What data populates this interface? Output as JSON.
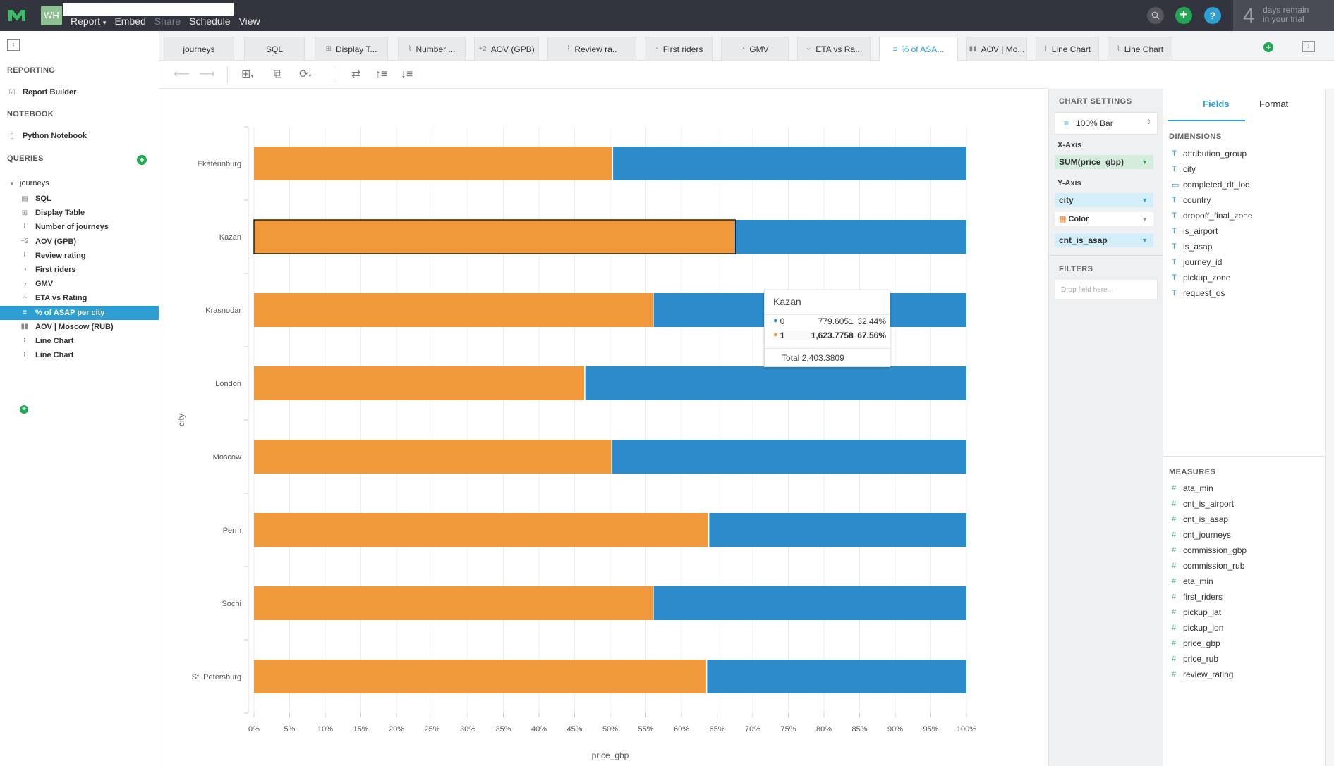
{
  "topbar": {
    "workspace_initials": "WH",
    "menu": [
      {
        "label": "Report",
        "has_arrow": true,
        "enabled": true
      },
      {
        "label": "Embed",
        "enabled": true
      },
      {
        "label": "Share",
        "enabled": false
      },
      {
        "label": "Schedule",
        "enabled": true
      },
      {
        "label": "View",
        "enabled": true
      }
    ],
    "help_label": "?",
    "trial_number": "4",
    "trial_line1": "days remain",
    "trial_line2": "in your trial",
    "colors": {
      "bg": "#33353e",
      "green": "#22a653",
      "blue": "#2d9fd3"
    }
  },
  "sidebar": {
    "reporting_title": "REPORTING",
    "report_builder": "Report Builder",
    "notebook_title": "NOTEBOOK",
    "python_notebook": "Python Notebook",
    "queries_title": "QUERIES",
    "query_group": "journeys",
    "items": [
      {
        "label": "SQL",
        "icon": "sql-icon"
      },
      {
        "label": "Display Table",
        "icon": "table-icon"
      },
      {
        "label": "Number of journeys",
        "icon": "line-chart-icon"
      },
      {
        "label": "AOV (GPB)",
        "icon": "number-icon"
      },
      {
        "label": "Review rating",
        "icon": "line-chart-icon"
      },
      {
        "label": "First riders",
        "icon": "pie-icon"
      },
      {
        "label": "GMV",
        "icon": "pie-icon"
      },
      {
        "label": "ETA vs Rating",
        "icon": "scatter-icon"
      },
      {
        "label": "% of ASAP per city",
        "icon": "bar-icon",
        "active": true
      },
      {
        "label": "AOV | Moscow (RUB)",
        "icon": "column-icon"
      },
      {
        "label": "Line Chart",
        "icon": "line-chart-icon"
      },
      {
        "label": "Line Chart",
        "icon": "line-chart-icon"
      }
    ]
  },
  "tabs": [
    {
      "label": "journeys",
      "icon": ""
    },
    {
      "label": "SQL",
      "icon": ""
    },
    {
      "label": "Display T...",
      "icon": "table-icon"
    },
    {
      "label": "Number ...",
      "icon": "line-chart-icon"
    },
    {
      "label": "AOV (GPB)",
      "icon": "number-icon"
    },
    {
      "label": "Review ra..",
      "icon": "line-chart-icon"
    },
    {
      "label": "First riders",
      "icon": "pie-icon"
    },
    {
      "label": "GMV",
      "icon": "pie-icon"
    },
    {
      "label": "ETA vs Ra...",
      "icon": "scatter-icon"
    },
    {
      "label": "% of ASA...",
      "icon": "bar-icon",
      "active": true
    },
    {
      "label": "AOV | Mo...",
      "icon": "column-icon"
    },
    {
      "label": "Line Chart",
      "icon": "line-chart-icon"
    },
    {
      "label": "Line Chart",
      "icon": "line-chart-icon"
    }
  ],
  "chart_data": {
    "type": "bar",
    "orientation": "horizontal",
    "stacking": "percent",
    "categories": [
      "Ekaterinburg",
      "Kazan",
      "Krasnodar",
      "London",
      "Moscow",
      "Perm",
      "Sochi",
      "St. Petersburg"
    ],
    "series": [
      {
        "name": "1",
        "color": "#f0993a",
        "values": [
          50.4,
          67.56,
          56.1,
          46.5,
          50.3,
          63.9,
          56.1,
          63.6
        ]
      },
      {
        "name": "0",
        "color": "#2c8cc9",
        "values": [
          49.6,
          32.44,
          43.9,
          53.5,
          49.7,
          36.1,
          43.9,
          36.4
        ]
      }
    ],
    "xlabel": "price_gbp",
    "ylabel": "city",
    "xlim": [
      0,
      100
    ],
    "xticks": [
      "0%",
      "5%",
      "10%",
      "15%",
      "20%",
      "25%",
      "30%",
      "35%",
      "40%",
      "45%",
      "50%",
      "55%",
      "60%",
      "65%",
      "70%",
      "75%",
      "80%",
      "85%",
      "90%",
      "95%",
      "100%"
    ],
    "grid": true,
    "highlighted_category": "Kazan",
    "tooltip": {
      "title": "Kazan",
      "rows": [
        {
          "label": "0",
          "value": "779.6051",
          "pct": "32.44%",
          "color": "#2c8cc9"
        },
        {
          "label": "1",
          "value": "1,623.7758",
          "pct": "67.56%",
          "color": "#f0993a"
        }
      ],
      "total": "Total 2,403.3809"
    }
  },
  "settings": {
    "title": "CHART SETTINGS",
    "chart_type": "100% Bar",
    "x_axis_label": "X-Axis",
    "x_axis_value": "SUM(price_gbp)",
    "y_axis_label": "Y-Axis",
    "y_axis_value": "city",
    "color_label": "Color",
    "color_value": "cnt_is_asap",
    "filters_title": "FILTERS",
    "filters_placeholder": "Drop field here..."
  },
  "fields": {
    "tab_fields": "Fields",
    "tab_format": "Format",
    "dimensions_title": "DIMENSIONS",
    "dimensions": [
      {
        "name": "attribution_group",
        "type": "text"
      },
      {
        "name": "city",
        "type": "text"
      },
      {
        "name": "completed_dt_loc",
        "type": "date"
      },
      {
        "name": "country",
        "type": "text"
      },
      {
        "name": "dropoff_final_zone",
        "type": "text"
      },
      {
        "name": "is_airport",
        "type": "text"
      },
      {
        "name": "is_asap",
        "type": "text"
      },
      {
        "name": "journey_id",
        "type": "text"
      },
      {
        "name": "pickup_zone",
        "type": "text"
      },
      {
        "name": "request_os",
        "type": "text"
      }
    ],
    "measures_title": "MEASURES",
    "measures": [
      "ata_min",
      "cnt_is_airport",
      "cnt_is_asap",
      "cnt_journeys",
      "commission_gbp",
      "commission_rub",
      "eta_min",
      "first_riders",
      "pickup_lat",
      "pickup_lon",
      "price_gbp",
      "price_rub",
      "review_rating"
    ]
  }
}
